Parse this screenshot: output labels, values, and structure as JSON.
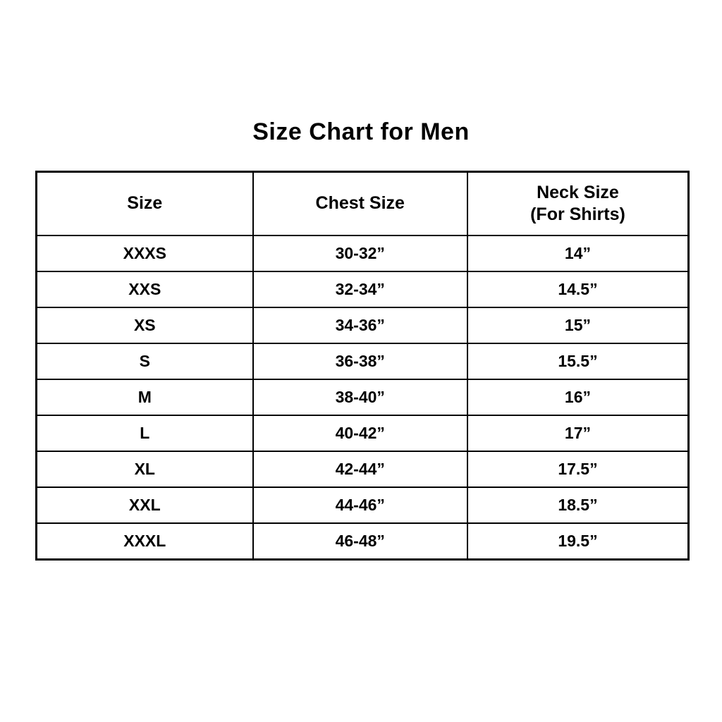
{
  "page": {
    "background_color": "#ffffff",
    "text_color": "#000000",
    "border_color": "#000000"
  },
  "chart_data": {
    "type": "table",
    "title": "Size Chart for Men",
    "columns": [
      "Size",
      "Chest Size",
      "Neck Size\n(For Shirts)"
    ],
    "rows": [
      [
        "XXXS",
        "30-32”",
        "14”"
      ],
      [
        "XXS",
        "32-34”",
        "14.5”"
      ],
      [
        "XS",
        "34-36”",
        "15”"
      ],
      [
        "S",
        "36-38”",
        "15.5”"
      ],
      [
        "M",
        "38-40”",
        "16”"
      ],
      [
        "L",
        "40-42”",
        "17”"
      ],
      [
        "XL",
        "42-44”",
        "17.5”"
      ],
      [
        "XXL",
        "44-46”",
        "18.5”"
      ],
      [
        "XXXL",
        "46-48”",
        "19.5”"
      ]
    ],
    "legend": null,
    "grid": "full black cell borders",
    "notes": "All text bold, black on white, horizontally and vertically centered in cells"
  }
}
